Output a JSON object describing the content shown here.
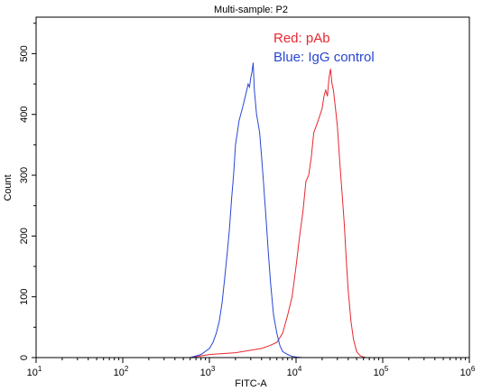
{
  "chart_data": {
    "type": "line",
    "title": "Multi-sample: P2",
    "xlabel": "FITC-A",
    "ylabel": "Count",
    "x_scale": "log",
    "xlim": [
      10,
      1000000
    ],
    "ylim": [
      0,
      560
    ],
    "x_ticks": [
      {
        "value": 10,
        "base": "10",
        "exp": "1"
      },
      {
        "value": 100,
        "base": "10",
        "exp": "2"
      },
      {
        "value": 1000,
        "base": "10",
        "exp": "3"
      },
      {
        "value": 10000,
        "base": "10",
        "exp": "4"
      },
      {
        "value": 100000,
        "base": "10",
        "exp": "5"
      },
      {
        "value": 1000000,
        "base": "10",
        "exp": "6"
      }
    ],
    "y_ticks": [
      0,
      100,
      200,
      300,
      400,
      500
    ],
    "grid": false,
    "legend_position": "top-right",
    "legend": [
      {
        "text": "Red: pAb",
        "color": "#e8262f"
      },
      {
        "text": "Blue: IgG control",
        "color": "#2846d4"
      }
    ],
    "series": [
      {
        "color": "#e8262f",
        "x": [
          600,
          1000,
          2000,
          3000,
          4000,
          5000,
          6000,
          7000,
          8000,
          9000,
          10000,
          11000,
          12000,
          13000,
          14000,
          15000,
          16000,
          17000,
          18000,
          19000,
          20000,
          21000,
          22000,
          23000,
          24000,
          25000,
          26000,
          27000,
          28000,
          29000,
          30000,
          31000,
          32000,
          34000,
          36000,
          38000,
          40000,
          43000,
          46000,
          50000,
          55000,
          60000,
          65000,
          70000,
          80000,
          90000,
          100000
        ],
        "y": [
          0,
          5,
          8,
          12,
          15,
          20,
          25,
          40,
          70,
          100,
          150,
          200,
          240,
          290,
          300,
          330,
          370,
          380,
          390,
          400,
          410,
          430,
          440,
          430,
          460,
          475,
          450,
          440,
          420,
          400,
          380,
          350,
          320,
          270,
          220,
          160,
          110,
          60,
          30,
          10,
          3,
          1,
          0,
          0,
          0,
          0,
          0
        ]
      },
      {
        "color": "#2846d4",
        "x": [
          600,
          800,
          1000,
          1100,
          1200,
          1300,
          1400,
          1500,
          1600,
          1700,
          1800,
          1900,
          2000,
          2100,
          2200,
          2300,
          2400,
          2500,
          2600,
          2700,
          2800,
          2900,
          3000,
          3100,
          3200,
          3300,
          3400,
          3500,
          3600,
          3700,
          3800,
          4000,
          4200,
          4500,
          4800,
          5100,
          5500,
          6000,
          6500,
          7000,
          8000,
          9000,
          10000,
          12000,
          15000
        ],
        "y": [
          0,
          5,
          15,
          25,
          40,
          60,
          90,
          130,
          170,
          210,
          260,
          300,
          350,
          370,
          390,
          400,
          410,
          420,
          430,
          440,
          450,
          445,
          460,
          470,
          485,
          440,
          420,
          400,
          390,
          380,
          370,
          330,
          290,
          230,
          170,
          120,
          70,
          40,
          20,
          10,
          5,
          2,
          1,
          0,
          0
        ]
      }
    ]
  }
}
